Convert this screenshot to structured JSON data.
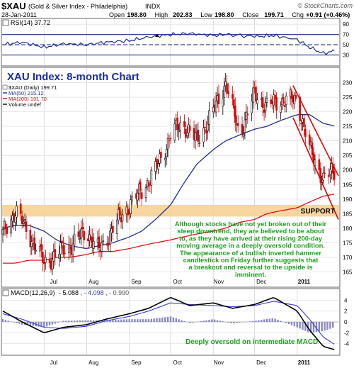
{
  "header": {
    "symbol": "$XAU",
    "name": "(Gold & Silver Index - Philadelphia)",
    "exchange": "INDX",
    "watermark": "© StockCharts.com",
    "date": "28-Jan-2011",
    "quote": [
      {
        "label": "Open",
        "value": "198.80"
      },
      {
        "label": "High",
        "value": "202.83"
      },
      {
        "label": "Low",
        "value": "198.80"
      },
      {
        "label": "Close",
        "value": "199.71"
      },
      {
        "label": "Chg",
        "value": "+0.91 (+0.46%)"
      }
    ]
  },
  "colors": {
    "price_up": "#000000",
    "price_down": "#e00000",
    "ma50": "#1c2f8f",
    "ma200": "#e01010",
    "rsi_line": "#1c2f8f",
    "macd_line": "#000000",
    "signal_line": "#3b3bd6",
    "histogram": "#8888c8",
    "support_band": "#f6cf8e",
    "annotation_text": "#1ca11c",
    "panel_title": "#1a2ea8",
    "channel": "#e00000"
  },
  "rsi_panel": {
    "legend": "RSI(14) 37.72",
    "levels": [
      "90",
      "70",
      "50",
      "30"
    ]
  },
  "price_panel": {
    "title": "XAU Index: 8-month Chart",
    "legend": [
      {
        "text": "$XAU (Daily) 199.71",
        "color": "#000000"
      },
      {
        "text": "MA(50) 215.12",
        "color": "#1c2f8f"
      },
      {
        "text": "MA(200) 191.70",
        "color": "#e01010"
      },
      {
        "text": "Volume undef",
        "color": "#000000"
      }
    ],
    "support_label": "SUPPORT",
    "annotation": [
      "Although stocks have not yet broken out of their",
      "steep downtrend, they are believed to be about",
      "to, as they have arrived at their rising 200-day",
      "moving average in a deeply oversold condition.",
      "The appearance of a bullish inverted hammer",
      "candlestick on Friday further suggests that",
      "a breakout and reversal to the upside is",
      "imminent."
    ]
  },
  "macd_panel": {
    "legend_name": "MACD(12,26,9)",
    "legend_values": [
      "- 5.088",
      ", - 4.098",
      ", - 0.990"
    ],
    "annotation": "Deeply oversold on intermediate MACD"
  },
  "chart_data": [
    {
      "type": "line",
      "title": "RSI(14) 37.72",
      "ylim": [
        10,
        100
      ],
      "yticks": [
        30,
        50,
        70,
        90
      ],
      "reference_lines": [
        30,
        50,
        70
      ],
      "x": [
        "2010-06-01",
        "2010-06-15",
        "2010-07-01",
        "2010-07-15",
        "2010-08-01",
        "2010-08-15",
        "2010-09-01",
        "2010-09-15",
        "2010-10-01",
        "2010-10-15",
        "2010-11-01",
        "2010-11-10",
        "2010-12-01",
        "2010-12-15",
        "2011-01-01",
        "2011-01-10",
        "2011-01-20",
        "2011-01-28"
      ],
      "series": [
        {
          "values": [
            50,
            55,
            45,
            52,
            50,
            55,
            58,
            65,
            70,
            72,
            68,
            70,
            66,
            68,
            60,
            45,
            33,
            38
          ]
        }
      ]
    },
    {
      "type": "line",
      "title": "XAU Index: 8-month Chart",
      "ylim": [
        160,
        235
      ],
      "yticks": [
        165,
        170,
        175,
        180,
        185,
        190,
        195,
        200,
        205,
        210,
        215,
        220,
        225,
        230
      ],
      "xticks": [
        "Jul",
        "Aug",
        "Sep",
        "Oct",
        "Nov",
        "Dec",
        "2011"
      ],
      "support_band": [
        184,
        188
      ],
      "x": [
        "2010-06-01",
        "2010-06-10",
        "2010-06-20",
        "2010-07-01",
        "2010-07-10",
        "2010-07-20",
        "2010-08-01",
        "2010-08-10",
        "2010-08-20",
        "2010-09-01",
        "2010-09-10",
        "2010-09-20",
        "2010-10-01",
        "2010-10-10",
        "2010-10-20",
        "2010-11-01",
        "2010-11-10",
        "2010-11-20",
        "2010-12-01",
        "2010-12-10",
        "2010-12-20",
        "2011-01-01",
        "2011-01-10",
        "2011-01-20",
        "2011-01-28"
      ],
      "series": [
        {
          "name": "$XAU (Daily) 199.71",
          "values": [
            178,
            186,
            178,
            168,
            171,
            174,
            179,
            172,
            180,
            188,
            193,
            200,
            212,
            216,
            210,
            220,
            230,
            212,
            226,
            222,
            224,
            224,
            207,
            197,
            199.71
          ]
        },
        {
          "name": "MA(50) 215.12",
          "values": [
            180,
            181,
            181,
            179,
            176,
            174,
            173,
            174,
            175,
            177,
            179,
            183,
            188,
            195,
            202,
            207,
            210,
            212,
            214,
            215,
            217,
            219,
            219,
            216,
            215.12
          ]
        },
        {
          "name": "MA(200) 191.70",
          "values": [
            168,
            168,
            169,
            169,
            170,
            170,
            171,
            172,
            172,
            173,
            174,
            175,
            176,
            177,
            178,
            179,
            180,
            182,
            183,
            185,
            186,
            187,
            189,
            191,
            191.7
          ]
        }
      ]
    },
    {
      "type": "line",
      "title": "MACD(12,26,9)",
      "ylim": [
        -6,
        6
      ],
      "yticks": [
        -4,
        -2,
        0,
        2,
        4
      ],
      "x": [
        "2010-06-01",
        "2010-06-15",
        "2010-07-01",
        "2010-07-15",
        "2010-08-01",
        "2010-08-15",
        "2010-09-01",
        "2010-09-15",
        "2010-10-01",
        "2010-10-15",
        "2010-11-01",
        "2010-11-15",
        "2010-12-01",
        "2010-12-15",
        "2011-01-01",
        "2011-01-10",
        "2011-01-20",
        "2011-01-28"
      ],
      "series": [
        {
          "name": "MACD",
          "values": [
            2,
            0,
            -2,
            -1,
            -0.5,
            0.5,
            1.5,
            2.5,
            4.5,
            3,
            3.5,
            2.5,
            3.2,
            4.5,
            2,
            -1.5,
            -4.5,
            -5.088
          ]
        },
        {
          "name": "Signal",
          "values": [
            1.5,
            0.5,
            -1,
            -1.2,
            -0.8,
            0.2,
            1,
            2,
            3.5,
            3.2,
            3,
            2.8,
            3,
            3.8,
            3,
            0.5,
            -2.8,
            -4.098
          ]
        },
        {
          "name": "Histogram",
          "values": [
            0.5,
            -0.5,
            -1,
            0.2,
            0.3,
            0.3,
            0.5,
            0.5,
            1,
            -0.2,
            0.5,
            -0.3,
            0.2,
            0.7,
            -1,
            -2,
            -1.7,
            -0.99
          ]
        }
      ]
    }
  ]
}
